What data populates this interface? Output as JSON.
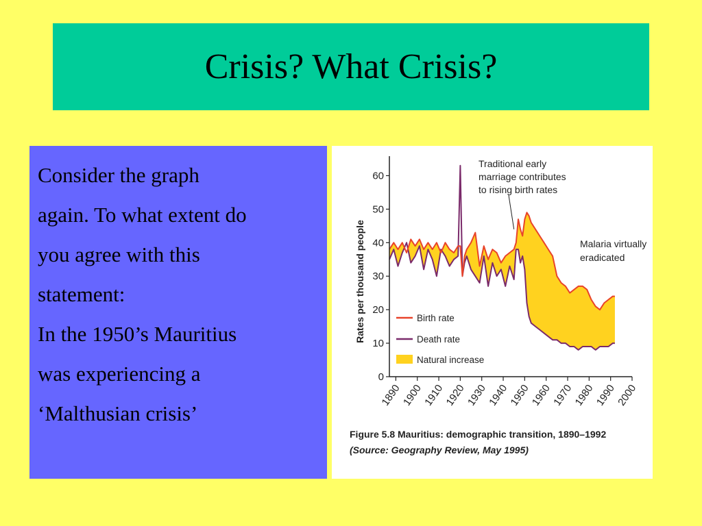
{
  "slide": {
    "title": "Crisis? What Crisis?",
    "body_lines": [
      "Consider the graph",
      "again. To what extent do",
      "you agree with this",
      "statement:",
      "In the 1950’s Mauritius",
      "was experiencing a",
      "‘Malthusian crisis’"
    ]
  },
  "colors": {
    "background": "#ffff66",
    "title_bar": "#00cc99",
    "text_panel": "#6666ff",
    "birth_rate": "#e8432a",
    "death_rate": "#7a2a6a",
    "natural_increase": "#ffd21f"
  },
  "chart_data": {
    "type": "area",
    "ylabel": "Rates per thousand people",
    "ylim": [
      0,
      65
    ],
    "yticks": [
      0,
      10,
      20,
      30,
      40,
      50,
      60
    ],
    "xlim": [
      1887,
      2000
    ],
    "xticks": [
      1890,
      1900,
      1910,
      1920,
      1930,
      1940,
      1950,
      1960,
      1970,
      1980,
      1990,
      2000
    ],
    "grid": false,
    "legend_position": "lower-left",
    "legend": [
      "Birth rate",
      "Death rate",
      "Natural increase"
    ],
    "annotations": [
      {
        "lines": [
          "Traditional early",
          "marriage contributes",
          "to rising birth rates"
        ],
        "points_to": [
          1945,
          44
        ]
      },
      {
        "lines": [
          "Malaria virtually",
          "eradicated"
        ],
        "points_to": null
      }
    ],
    "caption": [
      "Figure 5.8  Mauritius: demographic transition, 1890–1992",
      "(Source: Geography Review, May 1995)"
    ],
    "series": [
      {
        "name": "Birth rate",
        "x": [
          1887,
          1889,
          1891,
          1893,
          1895,
          1897,
          1899,
          1901,
          1903,
          1905,
          1907,
          1909,
          1911,
          1913,
          1915,
          1917,
          1919,
          1920,
          1921,
          1922,
          1923,
          1925,
          1927,
          1929,
          1931,
          1933,
          1935,
          1937,
          1939,
          1941,
          1943,
          1945,
          1946,
          1947,
          1948,
          1949,
          1950,
          1951,
          1952,
          1953,
          1955,
          1957,
          1959,
          1961,
          1963,
          1965,
          1967,
          1969,
          1971,
          1973,
          1975,
          1977,
          1979,
          1981,
          1983,
          1985,
          1987,
          1989,
          1991,
          1992
        ],
        "values": [
          38,
          40,
          38,
          40,
          37,
          41,
          39,
          41,
          38,
          40,
          38,
          40,
          37,
          40,
          38,
          37,
          39,
          39,
          30,
          36,
          38,
          40,
          43,
          33,
          39,
          35,
          38,
          37,
          34,
          36,
          37,
          38,
          40,
          47,
          44,
          42,
          47,
          49,
          48,
          46,
          44,
          42,
          40,
          38,
          36,
          30,
          28,
          27,
          25,
          26,
          27,
          27,
          26,
          23,
          21,
          20,
          22,
          23,
          24,
          24
        ]
      },
      {
        "name": "Death rate",
        "x": [
          1887,
          1889,
          1891,
          1893,
          1895,
          1897,
          1899,
          1901,
          1903,
          1905,
          1907,
          1909,
          1911,
          1913,
          1915,
          1917,
          1919,
          1920,
          1921,
          1922,
          1923,
          1925,
          1927,
          1929,
          1931,
          1933,
          1935,
          1937,
          1939,
          1941,
          1943,
          1945,
          1946,
          1947,
          1948,
          1949,
          1950,
          1951,
          1952,
          1953,
          1955,
          1957,
          1959,
          1961,
          1963,
          1965,
          1967,
          1969,
          1971,
          1973,
          1975,
          1977,
          1979,
          1981,
          1983,
          1985,
          1987,
          1989,
          1991,
          1992
        ],
        "values": [
          35,
          38,
          33,
          37,
          40,
          34,
          36,
          39,
          32,
          38,
          35,
          30,
          38,
          36,
          33,
          35,
          36,
          63,
          30,
          34,
          36,
          32,
          30,
          28,
          36,
          27,
          34,
          30,
          32,
          27,
          33,
          29,
          38,
          38,
          34,
          36,
          32,
          22,
          18,
          16,
          15,
          14,
          13,
          12,
          11,
          11,
          10,
          10,
          9,
          9,
          8,
          9,
          9,
          9,
          8,
          9,
          9,
          9,
          10,
          10
        ]
      }
    ]
  }
}
